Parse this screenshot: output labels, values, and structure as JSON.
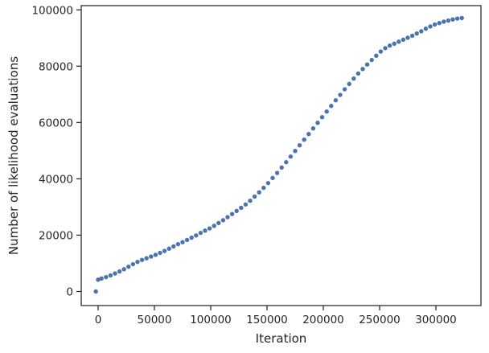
{
  "chart_data": {
    "type": "scatter",
    "title": "",
    "xlabel": "Iteration",
    "ylabel": "Number of likelihood evaluations",
    "xlim": [
      -15000,
      340000
    ],
    "ylim": [
      -5000,
      101500
    ],
    "xticks": [
      0,
      50000,
      100000,
      150000,
      200000,
      250000,
      300000
    ],
    "xtick_labels": [
      "0",
      "50000",
      "100000",
      "150000",
      "200000",
      "250000",
      "300000"
    ],
    "yticks": [
      0,
      20000,
      40000,
      60000,
      80000,
      100000
    ],
    "ytick_labels": [
      "0",
      "20000",
      "40000",
      "60000",
      "80000",
      "100000"
    ],
    "grid": false,
    "marker_color": "#4c72b0",
    "x": [
      -2000,
      0,
      3000,
      7000,
      11000,
      15000,
      19000,
      23000,
      27000,
      31000,
      35000,
      39000,
      43000,
      47000,
      51000,
      55000,
      59000,
      63000,
      67000,
      71000,
      75000,
      79000,
      83000,
      87000,
      91000,
      95000,
      99000,
      103000,
      107000,
      111000,
      115000,
      119000,
      123000,
      127000,
      131000,
      135000,
      139000,
      143000,
      147000,
      151000,
      155000,
      159000,
      163000,
      167000,
      171000,
      175000,
      179000,
      183000,
      187000,
      191000,
      195000,
      199000,
      203000,
      207000,
      211000,
      215000,
      219000,
      223000,
      227000,
      231000,
      235000,
      239000,
      243000,
      247000,
      251000,
      255000,
      259000,
      263000,
      267000,
      271000,
      275000,
      279000,
      283000,
      287000,
      291000,
      295000,
      299000,
      303000,
      307000,
      311000,
      315000,
      319000,
      323000
    ],
    "y": [
      0,
      4200,
      4600,
      5100,
      5700,
      6400,
      7100,
      7900,
      8800,
      9700,
      10500,
      11200,
      11800,
      12400,
      13000,
      13700,
      14400,
      15200,
      16000,
      16800,
      17500,
      18300,
      19100,
      19900,
      20800,
      21600,
      22400,
      23300,
      24300,
      25300,
      26400,
      27500,
      28600,
      29700,
      30900,
      32200,
      33700,
      35200,
      36800,
      38500,
      40300,
      42100,
      44000,
      45900,
      47900,
      49900,
      51900,
      53900,
      55900,
      57900,
      59900,
      61900,
      63900,
      65900,
      67900,
      69800,
      71800,
      73700,
      75600,
      77400,
      79000,
      80600,
      82200,
      83700,
      85200,
      86400,
      87300,
      88000,
      88700,
      89400,
      90100,
      90800,
      91600,
      92400,
      93300,
      94100,
      94800,
      95300,
      95800,
      96200,
      96600,
      96900,
      97100
    ]
  }
}
